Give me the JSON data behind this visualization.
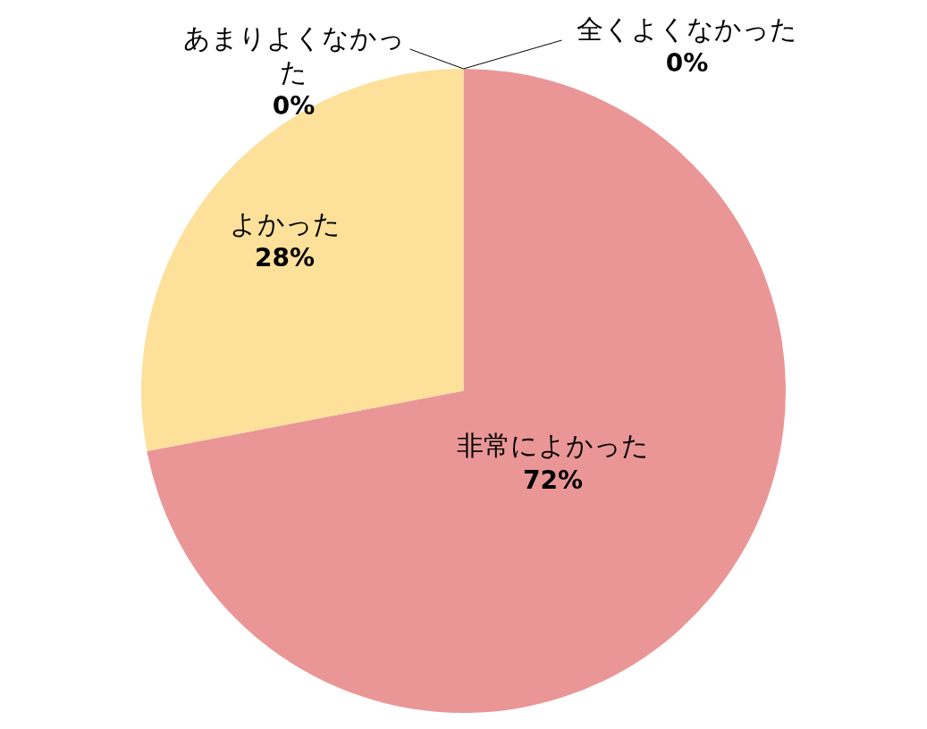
{
  "chart_data": {
    "type": "pie",
    "categories": [
      "非常によかった",
      "よかった",
      "あまりよくなかった",
      "全くよくなかった"
    ],
    "values": [
      72,
      28,
      0,
      0
    ],
    "value_labels": [
      "72%",
      "28%",
      "0%",
      "0%"
    ],
    "colors": [
      "#ea9696",
      "#fde09a",
      "#a9c4e6",
      "#b6d7a8"
    ]
  }
}
